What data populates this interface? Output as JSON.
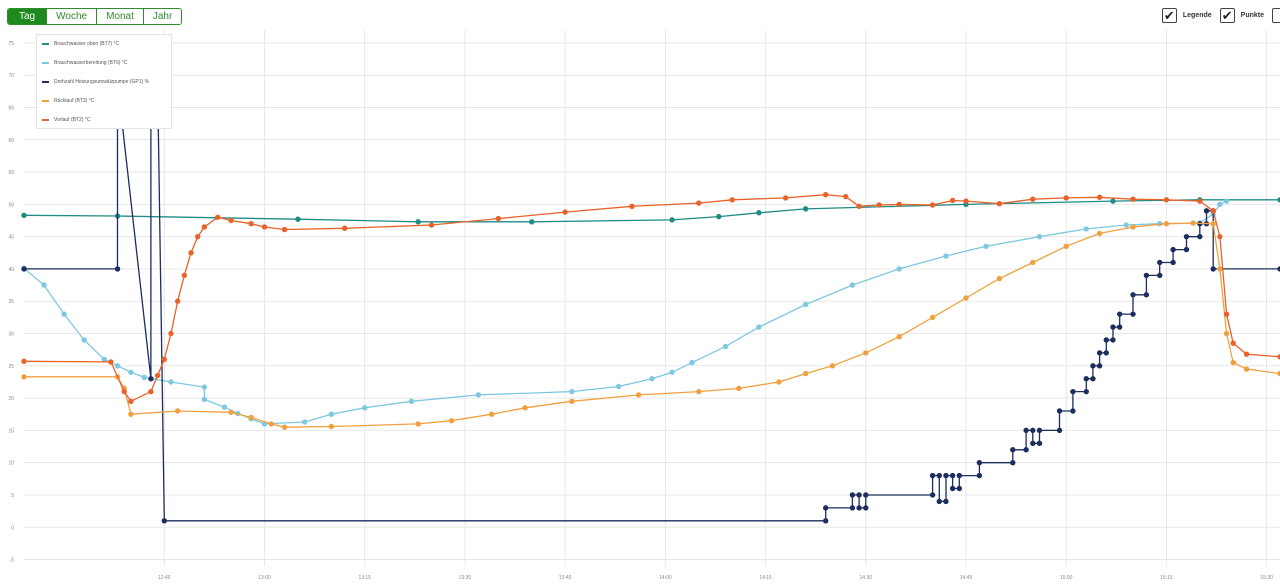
{
  "range_buttons": [
    "Tag",
    "Woche",
    "Monat",
    "Jahr"
  ],
  "active_range": "Tag",
  "toggles": {
    "legend_label": "Legende",
    "points_label": "Punkte",
    "legend_checked": true,
    "points_checked": true
  },
  "icons": {
    "checkbox": "checkmark-icon"
  },
  "colors": {
    "accent": "#1e8a1e",
    "grid": "#e8e8e8"
  },
  "chart_data": {
    "type": "line",
    "x_unit": "time",
    "xlim": [
      "12:24",
      "15:32"
    ],
    "ylim": [
      -6,
      77
    ],
    "y_ticks": [
      -5,
      0,
      5,
      10,
      15,
      20,
      25,
      30,
      35,
      40,
      45,
      50,
      55,
      60,
      65,
      70,
      75
    ],
    "x_ticks": [
      "12:45",
      "13:00",
      "13:15",
      "13:30",
      "13:45",
      "14:00",
      "14:15",
      "14:30",
      "14:45",
      "15:00",
      "15:15",
      "15:30"
    ],
    "grid": true,
    "legend_position": "top-left",
    "series": [
      {
        "name": "Brauchwasser oben (BT7) °C",
        "color": "#1f8c86",
        "step": false,
        "points": [
          [
            "12:24",
            48.3
          ],
          [
            "12:38",
            48.2
          ],
          [
            "13:05",
            47.7
          ],
          [
            "13:23",
            47.3
          ],
          [
            "13:40",
            47.3
          ],
          [
            "14:01",
            47.6
          ],
          [
            "14:08",
            48.1
          ],
          [
            "14:14",
            48.7
          ],
          [
            "14:21",
            49.3
          ],
          [
            "14:45",
            50.0
          ],
          [
            "15:07",
            50.5
          ],
          [
            "15:20",
            50.7
          ],
          [
            "15:32",
            50.7
          ]
        ]
      },
      {
        "name": "Brauchwasserbereitung (BT6) °C",
        "color": "#7ec8e0",
        "step": false,
        "points": [
          [
            "12:24",
            40.1
          ],
          [
            "12:27",
            37.5
          ],
          [
            "12:30",
            33.0
          ],
          [
            "12:33",
            29.0
          ],
          [
            "12:36",
            26.0
          ],
          [
            "12:38",
            25.0
          ],
          [
            "12:40",
            24.0
          ],
          [
            "12:42",
            23.2
          ],
          [
            "12:46",
            22.5
          ],
          [
            "12:51",
            21.7
          ],
          [
            "12:51",
            19.8
          ],
          [
            "12:54",
            18.6
          ],
          [
            "12:56",
            17.6
          ],
          [
            "12:58",
            16.8
          ],
          [
            "13:00",
            16.0
          ],
          [
            "13:06",
            16.3
          ],
          [
            "13:10",
            17.5
          ],
          [
            "13:15",
            18.5
          ],
          [
            "13:22",
            19.5
          ],
          [
            "13:32",
            20.5
          ],
          [
            "13:46",
            21.0
          ],
          [
            "13:53",
            21.8
          ],
          [
            "13:58",
            23.0
          ],
          [
            "14:01",
            24.0
          ],
          [
            "14:04",
            25.5
          ],
          [
            "14:09",
            28.0
          ],
          [
            "14:14",
            31.0
          ],
          [
            "14:21",
            34.5
          ],
          [
            "14:28",
            37.5
          ],
          [
            "14:35",
            40.0
          ],
          [
            "14:42",
            42.0
          ],
          [
            "14:48",
            43.5
          ],
          [
            "14:56",
            45.0
          ],
          [
            "15:03",
            46.2
          ],
          [
            "15:09",
            46.8
          ],
          [
            "15:14",
            47.0
          ],
          [
            "15:20",
            47.1
          ],
          [
            "15:22",
            48.5
          ],
          [
            "15:23",
            50.0
          ],
          [
            "15:24",
            50.5
          ]
        ]
      },
      {
        "name": "Drehzahl Heizungsumwälzpumpe (GP1) %",
        "color": "#1c2e5e",
        "step": true,
        "points": [
          [
            "12:24",
            40.0
          ],
          [
            "12:38",
            40.0
          ],
          [
            "12:38",
            69.0
          ],
          [
            "12:43",
            23.0
          ],
          [
            "12:43",
            69.0
          ],
          [
            "12:44",
            69.0
          ],
          [
            "12:45",
            1.0
          ],
          [
            "14:24",
            1.0
          ],
          [
            "14:24",
            3.0
          ],
          [
            "14:28",
            3.0
          ],
          [
            "14:28",
            5.0
          ],
          [
            "14:29",
            5.0
          ],
          [
            "14:29",
            3.0
          ],
          [
            "14:30",
            3.0
          ],
          [
            "14:30",
            5.0
          ],
          [
            "14:40",
            5.0
          ],
          [
            "14:40",
            8.0
          ],
          [
            "14:41",
            8.0
          ],
          [
            "14:41",
            4.0
          ],
          [
            "14:42",
            4.0
          ],
          [
            "14:42",
            8.0
          ],
          [
            "14:43",
            8.0
          ],
          [
            "14:43",
            6.0
          ],
          [
            "14:44",
            6.0
          ],
          [
            "14:44",
            8.0
          ],
          [
            "14:47",
            8.0
          ],
          [
            "14:47",
            10.0
          ],
          [
            "14:52",
            10.0
          ],
          [
            "14:52",
            12.0
          ],
          [
            "14:54",
            12.0
          ],
          [
            "14:54",
            15.0
          ],
          [
            "14:55",
            15.0
          ],
          [
            "14:55",
            13.0
          ],
          [
            "14:56",
            13.0
          ],
          [
            "14:56",
            15.0
          ],
          [
            "14:59",
            15.0
          ],
          [
            "14:59",
            18.0
          ],
          [
            "15:01",
            18.0
          ],
          [
            "15:01",
            21.0
          ],
          [
            "15:03",
            21.0
          ],
          [
            "15:03",
            23.0
          ],
          [
            "15:04",
            23.0
          ],
          [
            "15:04",
            25.0
          ],
          [
            "15:05",
            25.0
          ],
          [
            "15:05",
            27.0
          ],
          [
            "15:06",
            27.0
          ],
          [
            "15:06",
            29.0
          ],
          [
            "15:07",
            29.0
          ],
          [
            "15:07",
            31.0
          ],
          [
            "15:08",
            31.0
          ],
          [
            "15:08",
            33.0
          ],
          [
            "15:10",
            33.0
          ],
          [
            "15:10",
            36.0
          ],
          [
            "15:12",
            36.0
          ],
          [
            "15:12",
            39.0
          ],
          [
            "15:14",
            39.0
          ],
          [
            "15:14",
            41.0
          ],
          [
            "15:16",
            41.0
          ],
          [
            "15:16",
            43.0
          ],
          [
            "15:18",
            43.0
          ],
          [
            "15:18",
            45.0
          ],
          [
            "15:20",
            45.0
          ],
          [
            "15:20",
            47.0
          ],
          [
            "15:21",
            47.0
          ],
          [
            "15:21",
            49.0
          ],
          [
            "15:22",
            49.0
          ],
          [
            "15:22",
            40.0
          ],
          [
            "15:32",
            40.0
          ]
        ]
      },
      {
        "name": "Rücklauf (BT3) °C",
        "color": "#f0a040",
        "step": false,
        "points": [
          [
            "12:24",
            23.3
          ],
          [
            "12:38",
            23.3
          ],
          [
            "12:39",
            21.5
          ],
          [
            "12:40",
            17.5
          ],
          [
            "12:47",
            18.0
          ],
          [
            "12:55",
            17.8
          ],
          [
            "12:58",
            17.0
          ],
          [
            "13:01",
            16.0
          ],
          [
            "13:03",
            15.5
          ],
          [
            "13:10",
            15.6
          ],
          [
            "13:23",
            16.0
          ],
          [
            "13:28",
            16.5
          ],
          [
            "13:34",
            17.5
          ],
          [
            "13:39",
            18.5
          ],
          [
            "13:46",
            19.5
          ],
          [
            "13:56",
            20.5
          ],
          [
            "14:05",
            21.0
          ],
          [
            "14:11",
            21.5
          ],
          [
            "14:17",
            22.5
          ],
          [
            "14:21",
            23.8
          ],
          [
            "14:25",
            25.0
          ],
          [
            "14:30",
            27.0
          ],
          [
            "14:35",
            29.5
          ],
          [
            "14:40",
            32.5
          ],
          [
            "14:45",
            35.5
          ],
          [
            "14:50",
            38.5
          ],
          [
            "14:55",
            41.0
          ],
          [
            "15:00",
            43.5
          ],
          [
            "15:05",
            45.5
          ],
          [
            "15:10",
            46.5
          ],
          [
            "15:15",
            47.0
          ],
          [
            "15:19",
            47.1
          ],
          [
            "15:22",
            47.0
          ],
          [
            "15:23",
            40.0
          ],
          [
            "15:24",
            30.0
          ],
          [
            "15:25",
            25.5
          ],
          [
            "15:27",
            24.5
          ],
          [
            "15:32",
            23.8
          ]
        ]
      },
      {
        "name": "Vorlauf (BT2) °C",
        "color": "#e8622a",
        "step": false,
        "points": [
          [
            "12:24",
            25.7
          ],
          [
            "12:37",
            25.6
          ],
          [
            "12:39",
            21.0
          ],
          [
            "12:40",
            19.5
          ],
          [
            "12:43",
            21.0
          ],
          [
            "12:44",
            23.5
          ],
          [
            "12:45",
            26.0
          ],
          [
            "12:46",
            30.0
          ],
          [
            "12:47",
            35.0
          ],
          [
            "12:48",
            39.0
          ],
          [
            "12:49",
            42.5
          ],
          [
            "12:50",
            45.0
          ],
          [
            "12:51",
            46.5
          ],
          [
            "12:53",
            48.0
          ],
          [
            "12:55",
            47.5
          ],
          [
            "12:58",
            47.0
          ],
          [
            "13:00",
            46.5
          ],
          [
            "13:03",
            46.1
          ],
          [
            "13:12",
            46.3
          ],
          [
            "13:25",
            46.8
          ],
          [
            "13:35",
            47.8
          ],
          [
            "13:45",
            48.8
          ],
          [
            "13:55",
            49.7
          ],
          [
            "14:05",
            50.2
          ],
          [
            "14:10",
            50.7
          ],
          [
            "14:18",
            51.0
          ],
          [
            "14:24",
            51.5
          ],
          [
            "14:27",
            51.2
          ],
          [
            "14:29",
            49.7
          ],
          [
            "14:32",
            49.9
          ],
          [
            "14:35",
            50.0
          ],
          [
            "14:40",
            49.9
          ],
          [
            "14:43",
            50.6
          ],
          [
            "14:45",
            50.5
          ],
          [
            "14:50",
            50.1
          ],
          [
            "14:55",
            50.8
          ],
          [
            "15:00",
            51.0
          ],
          [
            "15:05",
            51.1
          ],
          [
            "15:10",
            50.8
          ],
          [
            "15:15",
            50.7
          ],
          [
            "15:20",
            50.5
          ],
          [
            "15:22",
            49.0
          ],
          [
            "15:23",
            45.0
          ],
          [
            "15:24",
            33.0
          ],
          [
            "15:25",
            28.5
          ],
          [
            "15:27",
            26.8
          ],
          [
            "15:32",
            26.4
          ]
        ]
      }
    ]
  }
}
